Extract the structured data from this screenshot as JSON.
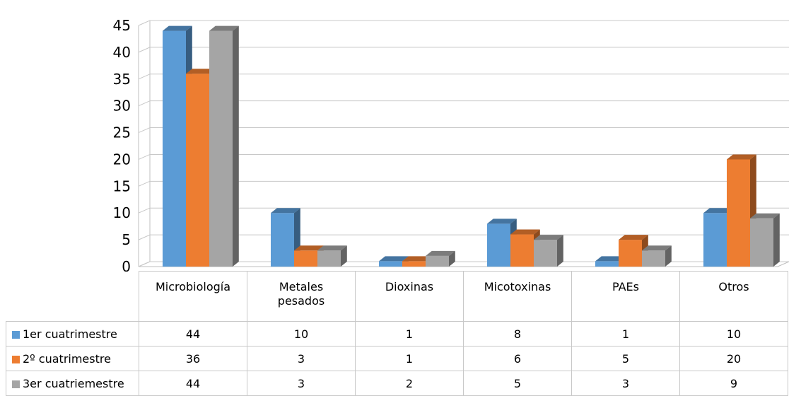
{
  "chart_data": {
    "type": "bar",
    "categories": [
      "Microbiología",
      "Metales pesados",
      "Dioxinas",
      "Micotoxinas",
      "PAEs",
      "Otros"
    ],
    "series": [
      {
        "name": "1er cuatrimestre",
        "values": [
          44,
          10,
          1,
          8,
          1,
          10
        ],
        "color": "#5b9bd5"
      },
      {
        "name": "2º cuatrimestre",
        "values": [
          36,
          3,
          1,
          6,
          5,
          20
        ],
        "color": "#ed7d31"
      },
      {
        "name": "3er cuatriemestre",
        "values": [
          44,
          3,
          2,
          5,
          3,
          9
        ],
        "color": "#a5a5a5"
      }
    ],
    "yticks": [
      "0",
      "5",
      "10",
      "15",
      "20",
      "25",
      "30",
      "35",
      "40",
      "45"
    ],
    "ylim": [
      0,
      45
    ],
    "grid": true,
    "style": "3d-clustered-column",
    "legend_placement": "data-table-below"
  }
}
